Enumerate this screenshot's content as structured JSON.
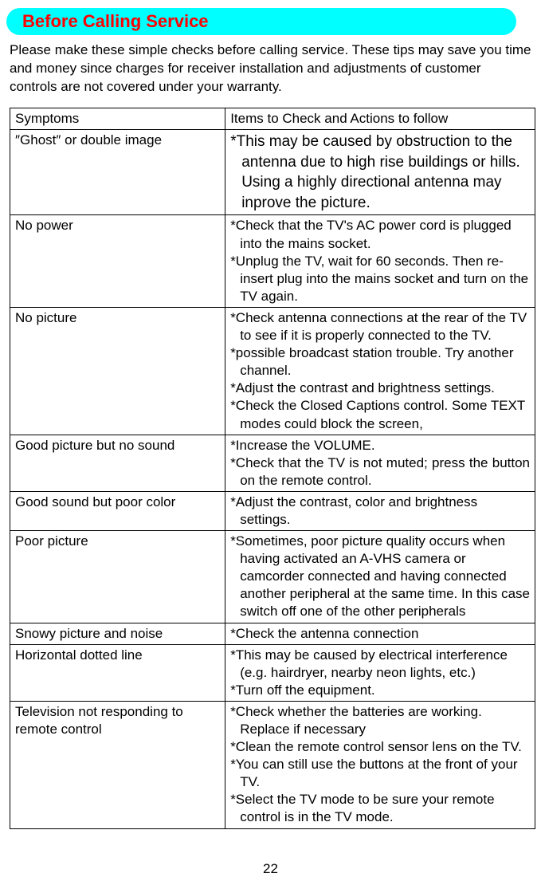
{
  "section": {
    "title": "Before Calling Service",
    "intro": "Please make these simple checks before calling service. These tips may save you time and money since charges for receiver installation and adjustments of customer controls are not covered under your warranty."
  },
  "table": {
    "header": {
      "col1": "Symptoms",
      "col2": "Items to Check and Actions to follow"
    },
    "rows": [
      {
        "symptom": "″Ghost″ or double image",
        "action": "*This may be caused by obstruction to the antenna due to high rise buildings or hills. Using a highly directional antenna may inprove the picture.",
        "large": true
      },
      {
        "symptom": "No power",
        "actions": [
          "*Check that the TV's AC power cord is plugged into the mains socket.",
          "*Unplug the TV, wait for 60 seconds. Then re-insert plug into the mains socket and turn on the TV again."
        ]
      },
      {
        "symptom": "No picture",
        "actions": [
          "*Check antenna connections at the rear of the TV to see if it is properly connected to the TV.",
          "*possible broadcast station trouble. Try another channel.",
          "*Adjust the contrast and brightness settings.",
          "*Check the Closed Captions control. Some TEXT modes could block the screen,"
        ]
      },
      {
        "symptom": "Good picture but no sound",
        "actions": [
          "*Increase the VOLUME.",
          "*Check that the TV is not muted; press the button on the remote control."
        ],
        "justified": [
          false,
          true
        ]
      },
      {
        "symptom": "Good sound but poor color",
        "actions": [
          "*Adjust the contrast, color and brightness settings."
        ]
      },
      {
        "symptom": "Poor picture",
        "actions": [
          "*Sometimes, poor picture quality occurs when having activated an A-VHS camera or camcorder connected and having connected another peripheral at the same time. In this case switch off one of the other peripherals"
        ]
      },
      {
        "symptom": "Snowy picture and noise",
        "actions": [
          "*Check the antenna connection"
        ]
      },
      {
        "symptom": "Horizontal dotted line",
        "actions": [
          "*This may be caused by electrical interference (e.g. hairdryer, nearby neon lights, etc.)",
          "*Turn off the equipment."
        ]
      },
      {
        "symptom": "Television not responding to remote control",
        "actions": [
          "*Check whether the batteries are working. Replace if necessary",
          "*Clean the remote control sensor lens on the TV.",
          "*You can still use the buttons at the front of your TV.",
          "*Select the TV mode to be sure your remote control is in the TV mode."
        ]
      }
    ]
  },
  "page_number": "22",
  "colors": {
    "header_bg": "#00ffff",
    "header_text": "#ff0000",
    "body_text": "#000000",
    "background": "#ffffff",
    "border": "#000000"
  }
}
